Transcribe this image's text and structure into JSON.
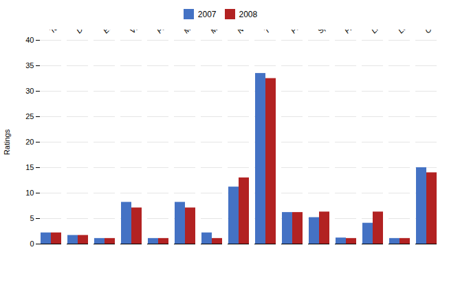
{
  "chart_data": {
    "type": "bar",
    "categories": [
      "Teenager",
      "Drama and Play",
      "Educational",
      "Variety",
      "Foreign Language",
      "Movie",
      "Music",
      "News",
      "TV Drama",
      "Feature",
      "Sports",
      "Financial and...",
      "Life",
      "Legal",
      "Others"
    ],
    "series": [
      {
        "name": "2007",
        "color": "#4472C4",
        "values": [
          2.2,
          1.7,
          1.1,
          8.2,
          1.1,
          8.2,
          2.2,
          11.2,
          33.5,
          6.2,
          5.2,
          1.2,
          4.1,
          1.1,
          15.0
        ]
      },
      {
        "name": "2008",
        "color": "#B22222",
        "values": [
          2.2,
          1.7,
          1.1,
          7.1,
          1.1,
          7.1,
          1.1,
          13.0,
          32.5,
          6.2,
          6.3,
          1.1,
          6.3,
          1.1,
          14.0
        ]
      }
    ],
    "ylabel": "Ratings",
    "ylim": [
      0,
      40
    ],
    "yticks": [
      0,
      5,
      10,
      15,
      20,
      25,
      30,
      35,
      40
    ],
    "grid": true,
    "legend": "upper center"
  }
}
